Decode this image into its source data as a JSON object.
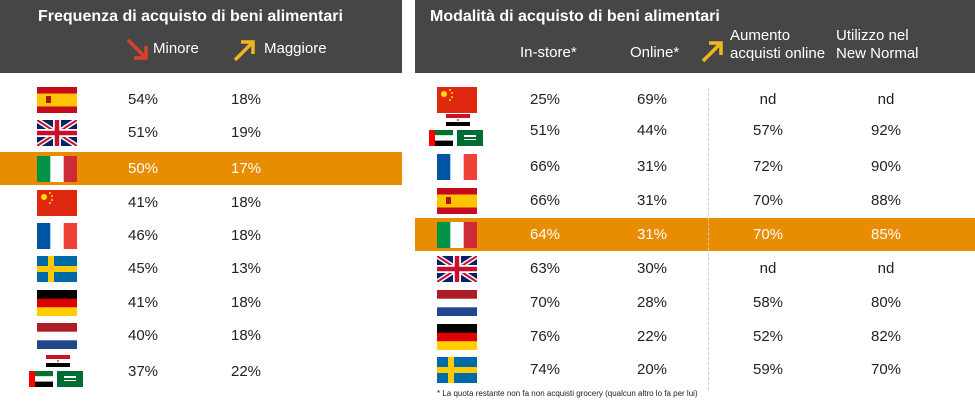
{
  "left": {
    "title": "Frequenza di  acquisto di beni alimentari",
    "minore": "Minore",
    "maggiore": "Maggiore",
    "arrow_down_color": "#D9412B",
    "arrow_up_color": "#F2B522",
    "highlight_color": "#E88C00",
    "rows": [
      {
        "flag": "spain",
        "minore": "54%",
        "maggiore": "18%"
      },
      {
        "flag": "uk",
        "minore": "51%",
        "maggiore": "19%"
      },
      {
        "flag": "italy",
        "minore": "50%",
        "maggiore": "17%",
        "highlight": true
      },
      {
        "flag": "china",
        "minore": "41%",
        "maggiore": "18%"
      },
      {
        "flag": "france",
        "minore": "46%",
        "maggiore": "18%"
      },
      {
        "flag": "sweden",
        "minore": "45%",
        "maggiore": "13%"
      },
      {
        "flag": "germany",
        "minore": "41%",
        "maggiore": "18%"
      },
      {
        "flag": "netherlands",
        "minore": "40%",
        "maggiore": "18%"
      },
      {
        "flag": "mena",
        "minore": "37%",
        "maggiore": "22%"
      }
    ]
  },
  "right": {
    "title": "Modalità di acquisto di beni alimentari",
    "col_instore": "In-store*",
    "col_online": "Online*",
    "col_aumento_1": "Aumento",
    "col_aumento_2": "acquisti online",
    "col_utilizzo_1": "Utilizzo nel",
    "col_utilizzo_2": "New Normal",
    "rows": [
      {
        "flag": "china",
        "instore": "25%",
        "online": "69%",
        "aumento": "nd",
        "utilizzo": "nd"
      },
      {
        "flag": "mena",
        "instore": "51%",
        "online": "44%",
        "aumento": "57%",
        "utilizzo": "92%"
      },
      {
        "flag": "france",
        "instore": "66%",
        "online": "31%",
        "aumento": "72%",
        "utilizzo": "90%"
      },
      {
        "flag": "spain",
        "instore": "66%",
        "online": "31%",
        "aumento": "70%",
        "utilizzo": "88%"
      },
      {
        "flag": "italy",
        "instore": "64%",
        "online": "31%",
        "aumento": "70%",
        "utilizzo": "85%",
        "highlight": true
      },
      {
        "flag": "uk",
        "instore": "63%",
        "online": "30%",
        "aumento": "nd",
        "utilizzo": "nd"
      },
      {
        "flag": "netherlands",
        "instore": "70%",
        "online": "28%",
        "aumento": "58%",
        "utilizzo": "80%"
      },
      {
        "flag": "germany",
        "instore": "76%",
        "online": "22%",
        "aumento": "52%",
        "utilizzo": "82%"
      },
      {
        "flag": "sweden",
        "instore": "74%",
        "online": "20%",
        "aumento": "59%",
        "utilizzo": "70%"
      }
    ],
    "footnote": "* La quota restante non fa non acquisti grocery (qualcun altro lo fa per lui)"
  }
}
